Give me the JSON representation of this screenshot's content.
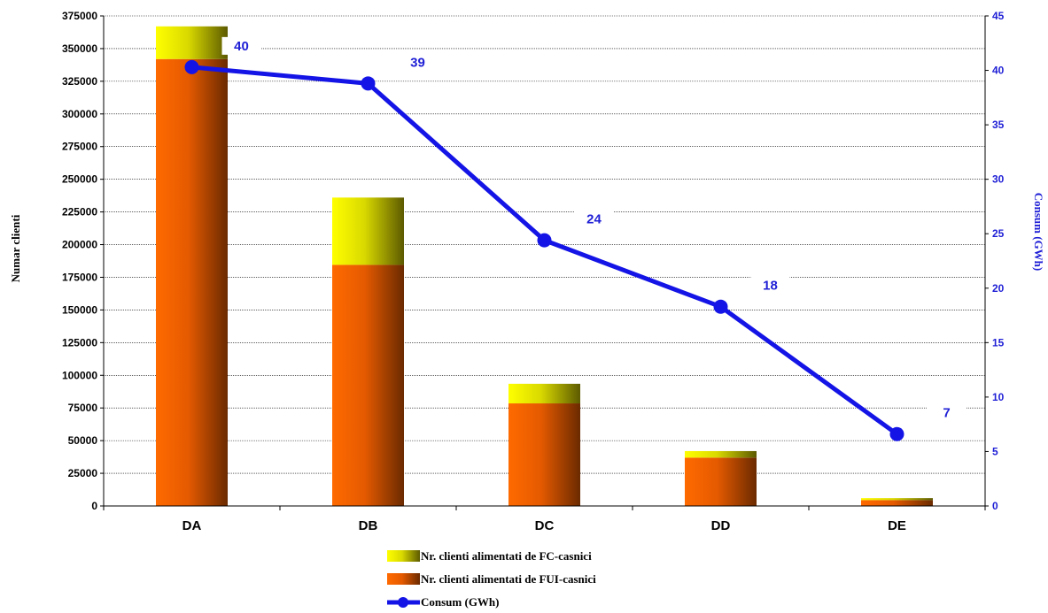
{
  "chart_data": {
    "type": "bar",
    "stacked": true,
    "categories": [
      "DA",
      "DB",
      "DC",
      "DD",
      "DE"
    ],
    "series": [
      {
        "name": "Nr. clienti alimentati de FUI-casnici",
        "kind": "bar",
        "axis": "left",
        "color": "#ff6a00",
        "values": [
          342000,
          184500,
          78500,
          37000,
          4500
        ]
      },
      {
        "name": "Nr. clienti alimentati de FC-casnici",
        "kind": "bar",
        "axis": "left",
        "color": "#ffff00",
        "values": [
          25000,
          51500,
          15000,
          5000,
          1500
        ]
      },
      {
        "name": "Consum (GWh)",
        "kind": "line",
        "axis": "right",
        "color": "#1414e6",
        "values": [
          40.3,
          38.8,
          24.4,
          18.3,
          6.6
        ],
        "labels": [
          "40",
          "39",
          "24",
          "18",
          "7"
        ]
      }
    ],
    "ylabel": "Numar clienti",
    "y2label": "Consum (GWh)",
    "ylim": [
      0,
      375000
    ],
    "y2lim": [
      0,
      45
    ],
    "yticks": [
      "0",
      "25000",
      "50000",
      "75000",
      "100000",
      "125000",
      "150000",
      "175000",
      "200000",
      "225000",
      "250000",
      "275000",
      "300000",
      "325000",
      "350000",
      "375000"
    ],
    "y2ticks": [
      "0",
      "5",
      "10",
      "15",
      "20",
      "25",
      "30",
      "35",
      "40",
      "45"
    ],
    "grid": true,
    "legend_position": "bottom"
  }
}
